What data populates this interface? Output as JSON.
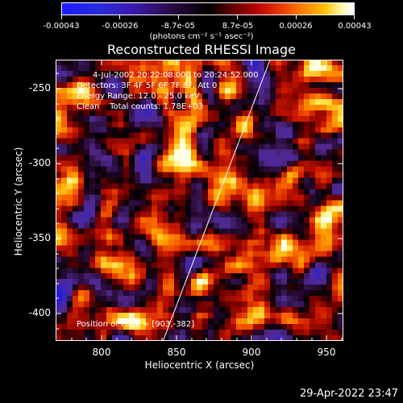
{
  "colorbar": {
    "ticks": [
      "-0.00043",
      "-0.00026",
      "-8.7e-05",
      "8.7e-05",
      "0.00026",
      "0.00043"
    ],
    "units_line": "(photons cm⁻² s⁻¹ asec⁻²)"
  },
  "title": "Reconstructed RHESSI Image",
  "annotations": {
    "time_range": "4-Jul-2002 20:22:08.000 to 20:24:52.000",
    "detectors": "Detectors: 3F 4F 5F 6F 7F 8F, Att 0",
    "energy_range": "Energy Range: 12.0 - 25.0 keV",
    "clean": "Clean    Total counts: 1.78E+03",
    "peak": "Position of Peak = [903,-382]"
  },
  "axes": {
    "xlabel": "Heliocentric X (arcsec)",
    "ylabel": "Heliocentric Y (arcsec)",
    "xticks": [
      "800",
      "850",
      "900",
      "950"
    ],
    "yticks": [
      "-250",
      "-300",
      "-350",
      "-400"
    ]
  },
  "timestamp": "29-Apr-2022 23:47"
}
